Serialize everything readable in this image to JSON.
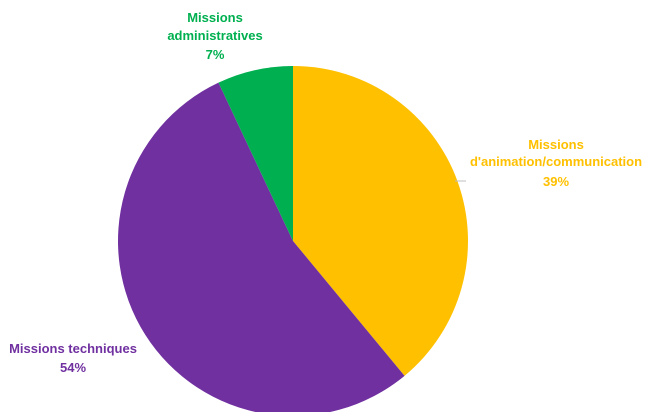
{
  "chart_data": {
    "type": "pie",
    "title": "",
    "start_angle_deg": 0,
    "direction": "clockwise",
    "slices": [
      {
        "name_lines": [
          "Missions",
          "d'animation/communication"
        ],
        "percent_label": "39%",
        "value": 39,
        "color": "#FFC000"
      },
      {
        "name_lines": [
          "Missions techniques"
        ],
        "percent_label": "54%",
        "value": 54,
        "color": "#7030A0"
      },
      {
        "name_lines": [
          "Missions",
          "administratives"
        ],
        "percent_label": "7%",
        "value": 7,
        "color": "#00B050"
      }
    ]
  }
}
